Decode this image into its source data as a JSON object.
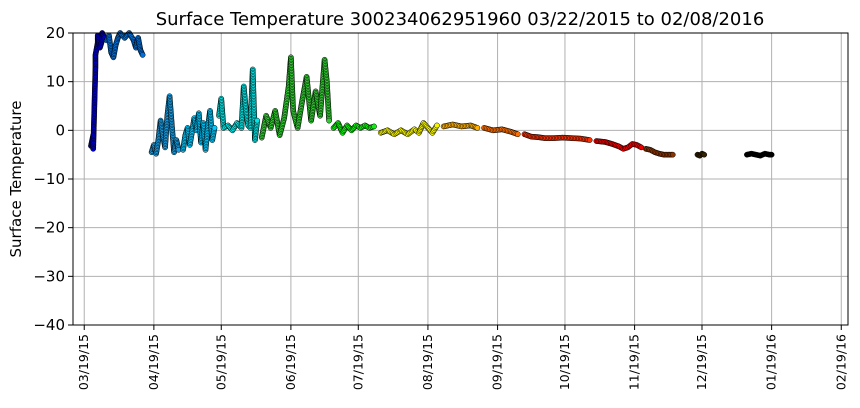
{
  "chart_data": {
    "type": "scatter",
    "title": "Surface Temperature 300234062951960  03/22/2015 to 02/08/2016",
    "xlabel": "",
    "ylabel": "Surface Temperature",
    "ylim": [
      -40,
      20
    ],
    "xlim": [
      "2015-03-14",
      "2016-02-22"
    ],
    "yticks": [
      20,
      10,
      0,
      -10,
      -20,
      -30,
      -40
    ],
    "ytick_labels": [
      "20",
      "10",
      "0",
      "−10",
      "−20",
      "−30",
      "−40"
    ],
    "xticks": [
      "2015-03-19",
      "2015-04-19",
      "2015-05-19",
      "2015-06-19",
      "2015-07-19",
      "2015-08-19",
      "2015-09-19",
      "2015-10-19",
      "2015-11-19",
      "2015-12-19",
      "2016-01-19",
      "2016-02-19"
    ],
    "xtick_labels": [
      "03/19/15",
      "04/19/15",
      "05/19/15",
      "06/19/15",
      "07/19/15",
      "08/19/15",
      "09/19/15",
      "10/19/15",
      "11/19/15",
      "12/19/15",
      "01/19/16",
      "02/19/16"
    ],
    "grid": true,
    "colormap": "time-ordered rainbow (blue → cyan → green → yellow → orange → red → black)",
    "segments": [
      {
        "color": "#0000cc",
        "points": [
          [
            "2015-03-22",
            -3.2
          ],
          [
            "2015-03-23",
            -1.0
          ],
          [
            "2015-03-23",
            -3.8
          ],
          [
            "2015-03-24",
            13.0
          ],
          [
            "2015-03-24",
            15.5
          ],
          [
            "2015-03-25",
            18.0
          ],
          [
            "2015-03-25",
            19.5
          ],
          [
            "2015-03-26",
            17.0
          ],
          [
            "2015-03-27",
            18.5
          ],
          [
            "2015-03-27",
            20.0
          ],
          [
            "2015-03-28",
            19.0
          ]
        ]
      },
      {
        "color": "#0070dd",
        "points": [
          [
            "2015-03-29",
            18.5
          ],
          [
            "2015-03-30",
            19.5
          ],
          [
            "2015-03-31",
            16.0
          ],
          [
            "2015-04-01",
            15.0
          ],
          [
            "2015-04-02",
            17.5
          ],
          [
            "2015-04-03",
            19.0
          ],
          [
            "2015-04-04",
            20.0
          ],
          [
            "2015-04-06",
            19.0
          ],
          [
            "2015-04-08",
            20.0
          ],
          [
            "2015-04-10",
            18.5
          ],
          [
            "2015-04-11",
            17.0
          ],
          [
            "2015-04-12",
            19.0
          ],
          [
            "2015-04-13",
            16.5
          ],
          [
            "2015-04-14",
            15.5
          ]
        ]
      },
      {
        "color": "#1a9fe6",
        "points": [
          [
            "2015-04-18",
            -4.5
          ],
          [
            "2015-04-19",
            -3.0
          ],
          [
            "2015-04-20",
            -4.8
          ],
          [
            "2015-04-21",
            -2.0
          ],
          [
            "2015-04-22",
            2.0
          ],
          [
            "2015-04-23",
            -1.0
          ],
          [
            "2015-04-24",
            -3.5
          ],
          [
            "2015-04-25",
            3.0
          ],
          [
            "2015-04-26",
            7.0
          ],
          [
            "2015-04-27",
            1.0
          ],
          [
            "2015-04-28",
            -4.5
          ],
          [
            "2015-04-29",
            -2.0
          ],
          [
            "2015-04-30",
            -4.0
          ]
        ]
      },
      {
        "color": "#00c8ff",
        "points": [
          [
            "2015-05-02",
            -4.0
          ],
          [
            "2015-05-03",
            -1.0
          ],
          [
            "2015-05-04",
            0.5
          ],
          [
            "2015-05-05",
            -3.0
          ],
          [
            "2015-05-07",
            2.5
          ],
          [
            "2015-05-08",
            0.0
          ],
          [
            "2015-05-09",
            3.5
          ],
          [
            "2015-05-10",
            -2.5
          ],
          [
            "2015-05-11",
            1.5
          ],
          [
            "2015-05-12",
            -4.0
          ],
          [
            "2015-05-13",
            0.5
          ],
          [
            "2015-05-14",
            4.0
          ],
          [
            "2015-05-15",
            -2.0
          ],
          [
            "2015-05-16",
            0.5
          ]
        ]
      },
      {
        "color": "#00e6e6",
        "points": [
          [
            "2015-05-18",
            3.0
          ],
          [
            "2015-05-19",
            6.5
          ],
          [
            "2015-05-20",
            0.5
          ],
          [
            "2015-05-22",
            1.0
          ],
          [
            "2015-05-24",
            0.0
          ],
          [
            "2015-05-26",
            1.5
          ],
          [
            "2015-05-28",
            0.5
          ],
          [
            "2015-05-29",
            9.0
          ],
          [
            "2015-05-30",
            4.0
          ],
          [
            "2015-05-31",
            1.0
          ],
          [
            "2015-06-01",
            0.5
          ],
          [
            "2015-06-02",
            12.5
          ],
          [
            "2015-06-03",
            -2.0
          ],
          [
            "2015-06-04",
            2.0
          ]
        ]
      },
      {
        "color": "#33cc33",
        "points": [
          [
            "2015-06-06",
            -1.5
          ],
          [
            "2015-06-08",
            3.0
          ],
          [
            "2015-06-10",
            0.5
          ],
          [
            "2015-06-12",
            4.0
          ],
          [
            "2015-06-14",
            -1.0
          ],
          [
            "2015-06-16",
            2.5
          ],
          [
            "2015-06-18",
            9.0
          ],
          [
            "2015-06-19",
            15.0
          ],
          [
            "2015-06-20",
            4.0
          ],
          [
            "2015-06-22",
            0.5
          ],
          [
            "2015-06-24",
            6.0
          ],
          [
            "2015-06-26",
            11.0
          ],
          [
            "2015-06-28",
            2.0
          ],
          [
            "2015-06-30",
            8.0
          ],
          [
            "2015-07-02",
            3.0
          ],
          [
            "2015-07-04",
            14.5
          ],
          [
            "2015-07-05",
            10.0
          ],
          [
            "2015-07-06",
            2.0
          ]
        ]
      },
      {
        "color": "#11ee11",
        "points": [
          [
            "2015-07-08",
            0.5
          ],
          [
            "2015-07-10",
            1.5
          ],
          [
            "2015-07-12",
            -0.5
          ],
          [
            "2015-07-14",
            1.0
          ],
          [
            "2015-07-16",
            0.0
          ],
          [
            "2015-07-18",
            1.0
          ],
          [
            "2015-07-20",
            0.5
          ],
          [
            "2015-07-22",
            1.0
          ],
          [
            "2015-07-24",
            0.5
          ],
          [
            "2015-07-26",
            0.8
          ]
        ]
      },
      {
        "color": "#f5f500",
        "points": [
          [
            "2015-07-29",
            -0.5
          ],
          [
            "2015-08-01",
            0.0
          ],
          [
            "2015-08-04",
            -0.8
          ],
          [
            "2015-08-07",
            0.0
          ],
          [
            "2015-08-10",
            -0.8
          ],
          [
            "2015-08-13",
            0.2
          ],
          [
            "2015-08-15",
            -0.5
          ],
          [
            "2015-08-17",
            1.5
          ],
          [
            "2015-08-19",
            0.5
          ],
          [
            "2015-08-21",
            -0.5
          ],
          [
            "2015-08-23",
            1.0
          ]
        ]
      },
      {
        "color": "#ffb000",
        "points": [
          [
            "2015-08-26",
            0.8
          ],
          [
            "2015-08-30",
            1.2
          ],
          [
            "2015-09-03",
            0.8
          ],
          [
            "2015-09-07",
            1.0
          ],
          [
            "2015-09-10",
            0.5
          ]
        ]
      },
      {
        "color": "#ff7000",
        "points": [
          [
            "2015-09-13",
            0.5
          ],
          [
            "2015-09-17",
            0.0
          ],
          [
            "2015-09-21",
            0.2
          ],
          [
            "2015-09-25",
            -0.3
          ],
          [
            "2015-09-28",
            -0.8
          ]
        ]
      },
      {
        "color": "#ff3000",
        "points": [
          [
            "2015-10-01",
            -0.8
          ],
          [
            "2015-10-04",
            -1.3
          ],
          [
            "2015-10-07",
            -1.4
          ],
          [
            "2015-10-10",
            -1.6
          ],
          [
            "2015-10-14",
            -1.6
          ],
          [
            "2015-10-18",
            -1.5
          ],
          [
            "2015-10-22",
            -1.6
          ],
          [
            "2015-10-26",
            -1.7
          ],
          [
            "2015-10-30",
            -2.0
          ]
        ]
      },
      {
        "color": "#ee0000",
        "points": [
          [
            "2015-11-02",
            -2.2
          ],
          [
            "2015-11-06",
            -2.4
          ],
          [
            "2015-11-09",
            -2.8
          ],
          [
            "2015-11-12",
            -3.3
          ],
          [
            "2015-11-14",
            -3.8
          ],
          [
            "2015-11-16",
            -3.5
          ],
          [
            "2015-11-18",
            -2.8
          ],
          [
            "2015-11-20",
            -3.0
          ],
          [
            "2015-11-22",
            -3.5
          ]
        ]
      },
      {
        "color": "#883300",
        "points": [
          [
            "2015-11-24",
            -3.8
          ],
          [
            "2015-11-26",
            -4.0
          ],
          [
            "2015-11-28",
            -4.5
          ],
          [
            "2015-11-30",
            -4.8
          ],
          [
            "2015-12-02",
            -5.0
          ],
          [
            "2015-12-04",
            -5.0
          ],
          [
            "2015-12-06",
            -5.0
          ]
        ]
      },
      {
        "color": "#332200",
        "points": [
          [
            "2015-12-17",
            -5.0
          ],
          [
            "2015-12-18",
            -5.2
          ],
          [
            "2015-12-19",
            -4.8
          ],
          [
            "2015-12-20",
            -5.0
          ]
        ]
      },
      {
        "color": "#000000",
        "points": [
          [
            "2016-01-08",
            -5.0
          ],
          [
            "2016-01-10",
            -4.8
          ],
          [
            "2016-01-12",
            -5.0
          ],
          [
            "2016-01-14",
            -5.2
          ],
          [
            "2016-01-16",
            -4.8
          ],
          [
            "2016-01-18",
            -5.0
          ],
          [
            "2016-01-19",
            -5.0
          ]
        ]
      }
    ]
  }
}
